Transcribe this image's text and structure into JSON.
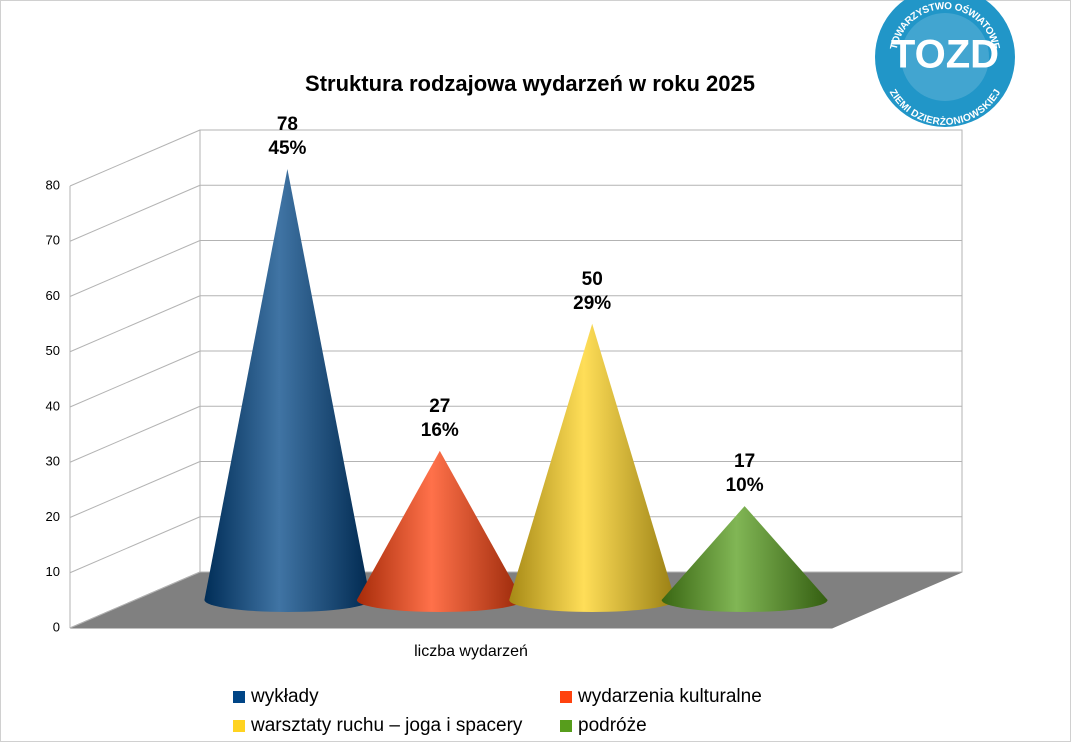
{
  "chart_data": {
    "type": "cone",
    "title": "Struktura rodzajowa wydarzeń w roku 2025",
    "categories": [
      "liczba wydarzeń"
    ],
    "series": [
      {
        "name": "wykłady",
        "color": "#004586",
        "values": [
          78
        ],
        "shares": [
          45
        ],
        "share_labels": [
          "45%"
        ]
      },
      {
        "name": "wydarzenia kulturalne",
        "color": "#ff420e",
        "values": [
          27
        ],
        "shares": [
          16
        ],
        "share_labels": [
          "16%"
        ]
      },
      {
        "name": "warsztaty ruchu – joga i spacery",
        "color": "#ffd320",
        "values": [
          50
        ],
        "shares": [
          29
        ],
        "share_labels": [
          "29%"
        ]
      },
      {
        "name": "podróże",
        "color": "#579d1c",
        "values": [
          17
        ],
        "shares": [
          10
        ],
        "share_labels": [
          "10%"
        ]
      }
    ],
    "ylim": [
      0,
      80
    ],
    "yticks": [
      0,
      10,
      20,
      30,
      40,
      50,
      60,
      70,
      80
    ],
    "grid": true,
    "legend": "bottom"
  },
  "logo": {
    "top_text": "TOWARZYSTWO OŚWIATOWE",
    "bottom_text": "ZIEMI DZIERŻONIOWSKIEJ",
    "mark": "TOZD"
  }
}
